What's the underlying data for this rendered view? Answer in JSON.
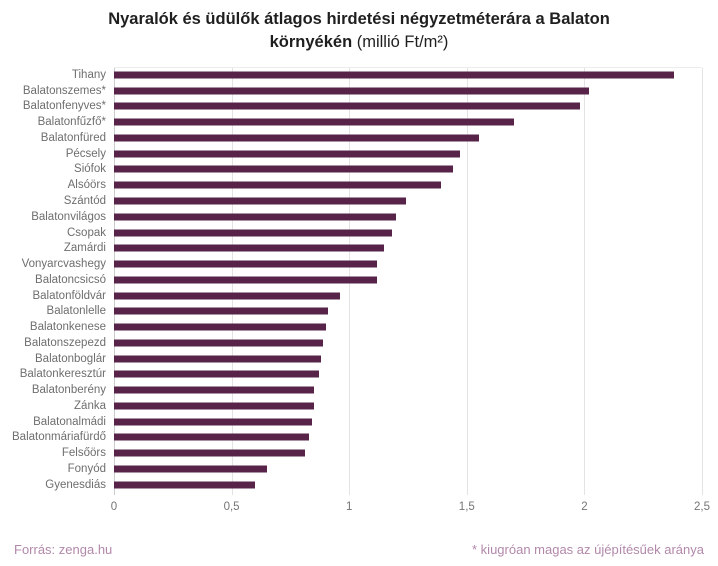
{
  "title": {
    "line1": "Nyaralók és üdülők átlagos hirdetési négyzetméterára a Balaton",
    "line2_bold": "környékén",
    "line2_unit": " (millió Ft/m²)"
  },
  "footer": {
    "source": "Forrás: zenga.hu",
    "footnote": "* kiugróan magas az újépítésűek aránya"
  },
  "colors": {
    "bar": "#572349",
    "footer_text": "#b288aa",
    "category_label": "#6e6e6e",
    "tick_label": "#757575",
    "gridline": "#e3e3e3"
  },
  "chart_data": {
    "type": "bar",
    "orientation": "horizontal",
    "title": "Nyaralók és üdülők átlagos hirdetési négyzetmétera a Balaton környékén (millió Ft/m²)",
    "xlabel": "",
    "ylabel": "",
    "xlim": [
      0,
      2.5
    ],
    "x_ticks": [
      0,
      0.5,
      1,
      1.5,
      2,
      2.5
    ],
    "x_tick_labels": [
      "0",
      "0,5",
      "1",
      "1,5",
      "2",
      "2,5"
    ],
    "grid": true,
    "legend": false,
    "categories": [
      "Tihany",
      "Balatonszemes*",
      "Balatonfenyves*",
      "Balatonfűzfő*",
      "Balatonfüred",
      "Pécsely",
      "Siófok",
      "Alsóörs",
      "Szántód",
      "Balatonvilágos",
      "Csopak",
      "Zamárdi",
      "Vonyarcvashegy",
      "Balatoncsicsó",
      "Balatonföldvár",
      "Balatonlelle",
      "Balatonkenese",
      "Balatonszepezd",
      "Balatonboglár",
      "Balatonkeresztúr",
      "Balatonberény",
      "Zánka",
      "Balatonalmádi",
      "Balatonmáriafürdő",
      "Felsőörs",
      "Fonyód",
      "Gyenesdiás"
    ],
    "values": [
      2.38,
      2.02,
      1.98,
      1.7,
      1.55,
      1.47,
      1.44,
      1.39,
      1.24,
      1.2,
      1.18,
      1.15,
      1.12,
      1.12,
      0.96,
      0.91,
      0.9,
      0.89,
      0.88,
      0.87,
      0.85,
      0.85,
      0.84,
      0.83,
      0.81,
      0.65,
      0.6
    ]
  }
}
